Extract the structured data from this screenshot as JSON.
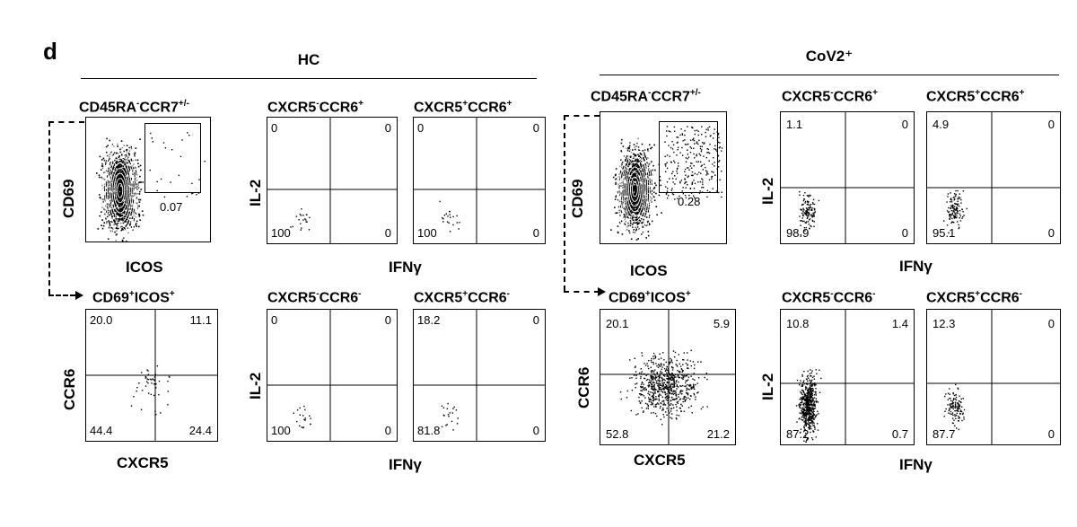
{
  "panel_letter": "d",
  "groups": {
    "left": "HC",
    "right": "CoV2⁺"
  },
  "axis_labels": {
    "cd69": "CD69",
    "icos": "ICOS",
    "il2": "IL-2",
    "ifng": "IFNγ",
    "ccr6": "CCR6",
    "cxcr5": "CXCR5"
  },
  "titles": {
    "gate_base": "CD45RA",
    "gate_sup": "-",
    "gate_base2": "CCR7",
    "gate_sup2": "+/-",
    "cd69_icos": "CD69",
    "cd69_icos_sup": "+",
    "icos": "ICOS",
    "icos_sup": "+",
    "cxcr5": "CXCR5",
    "ccr6": "CCR6",
    "minus": "-",
    "plus": "+"
  },
  "hc": {
    "gate_value": "0.07",
    "cxcr5neg_ccr6pos": {
      "tl": "0",
      "tr": "0",
      "bl": "100",
      "br": "0"
    },
    "cxcr5pos_ccr6pos": {
      "tl": "0",
      "tr": "0",
      "bl": "100",
      "br": "0"
    },
    "cd69_icos": {
      "tl": "20.0",
      "tr": "11.1",
      "bl": "44.4",
      "br": "24.4"
    },
    "cxcr5neg_ccr6neg": {
      "tl": "0",
      "tr": "0",
      "bl": "100",
      "br": "0"
    },
    "cxcr5pos_ccr6neg": {
      "tl": "18.2",
      "tr": "0",
      "bl": "81.8",
      "br": "0"
    }
  },
  "cov": {
    "gate_value": "0.28",
    "cxcr5neg_ccr6pos": {
      "tl": "1.1",
      "tr": "0",
      "bl": "98.9",
      "br": "0"
    },
    "cxcr5pos_ccr6pos": {
      "tl": "4.9",
      "tr": "0",
      "bl": "95.1",
      "br": "0"
    },
    "cd69_icos": {
      "tl": "20.1",
      "tr": "5.9",
      "bl": "52.8",
      "br": "21.2"
    },
    "cxcr5neg_ccr6neg": {
      "tl": "10.8",
      "tr": "1.4",
      "bl": "87.2",
      "br": "0.7"
    },
    "cxcr5pos_ccr6neg": {
      "tl": "12.3",
      "tr": "0",
      "bl": "87.7",
      "br": "0"
    }
  }
}
